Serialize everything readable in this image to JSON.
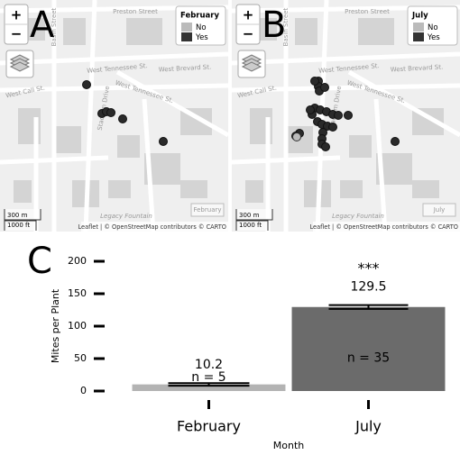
{
  "maps": [
    {
      "label": "A",
      "zoom": [
        "+",
        "−"
      ],
      "legend_title": "February",
      "legend_items": [
        "No",
        "Yes"
      ],
      "streets": [
        "Preston Street",
        "Basin Street",
        "West Tennessee St.",
        "West Brevard St.",
        "West Tennessee St.",
        "West Call St.",
        "Stadium Drive",
        "Legacy Fountain"
      ],
      "scale": [
        "300 m",
        "1000 ft"
      ],
      "attribution": "Leaflet | © OpenStreetMap contributors © CARTO",
      "corner_label": "February"
    },
    {
      "label": "B",
      "zoom": [
        "+",
        "−"
      ],
      "legend_title": "July",
      "legend_items": [
        "No",
        "Yes"
      ],
      "streets": [
        "Preston Street",
        "Basin Street",
        "West Tennessee St.",
        "West Brevard St.",
        "West Tennessee St.",
        "West Call St.",
        "Stadium Drive",
        "Legacy Fountain"
      ],
      "scale": [
        "300 m",
        "1000 ft"
      ],
      "attribution": "Leaflet | © OpenStreetMap contributors © CARTO",
      "corner_label": "July"
    }
  ],
  "chart_data": {
    "type": "bar",
    "panel_label": "C",
    "ylabel": "Mites per Plant",
    "xlabel": "Month",
    "categories": [
      "February",
      "July"
    ],
    "values": [
      10.2,
      129.5
    ],
    "errors": [
      2,
      3
    ],
    "colors": [
      "#b3b3b3",
      "#6b6b6b"
    ],
    "n_labels": [
      "n = 5",
      "n = 35"
    ],
    "significance": "***",
    "ylim": [
      0,
      200
    ],
    "yticks": [
      0,
      50,
      100,
      150,
      200
    ]
  }
}
